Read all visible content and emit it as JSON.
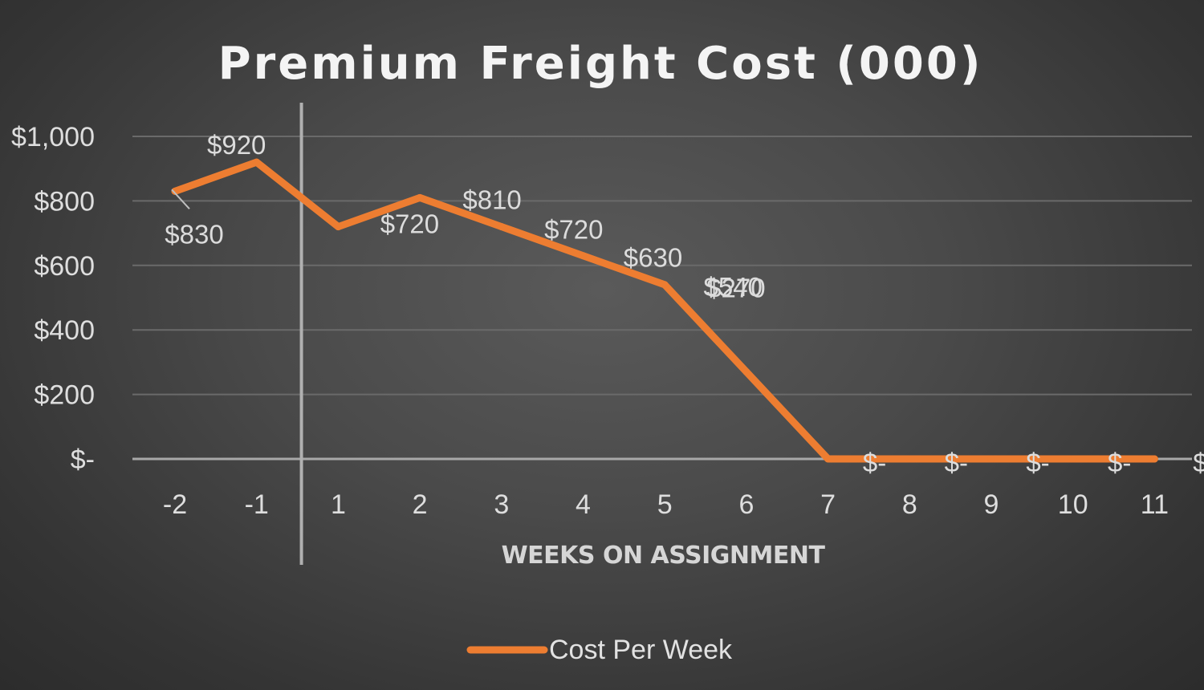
{
  "chart_data": {
    "type": "line",
    "title": "Premium Freight Cost (000)",
    "xlabel": "WEEKS ON ASSIGNMENT",
    "ylabel": "",
    "categories": [
      "-2",
      "-1",
      "1",
      "2",
      "3",
      "4",
      "5",
      "6",
      "7",
      "8",
      "9",
      "10",
      "11"
    ],
    "series": [
      {
        "name": "Cost Per Week",
        "values": [
          830,
          920,
          720,
          810,
          720,
          630,
          540,
          270,
          0,
          0,
          0,
          0,
          0
        ],
        "labels": [
          "$830",
          "$920",
          "$720",
          "$810",
          "$720",
          "$630",
          "$540",
          "$270",
          "$-",
          "$-",
          "$-",
          "$-",
          "$"
        ]
      }
    ],
    "y_ticks": [
      {
        "value": 0,
        "label": "$-"
      },
      {
        "value": 200,
        "label": "$200"
      },
      {
        "value": 400,
        "label": "$400"
      },
      {
        "value": 600,
        "label": "$600"
      },
      {
        "value": 800,
        "label": "$800"
      },
      {
        "value": 1000,
        "label": "$1,000"
      }
    ],
    "ylim": [
      0,
      1000
    ],
    "grid": true,
    "legend_position": "bottom",
    "divider_after_category": "-1",
    "colors": {
      "series": "#ed7d31",
      "background": "#454545"
    }
  }
}
